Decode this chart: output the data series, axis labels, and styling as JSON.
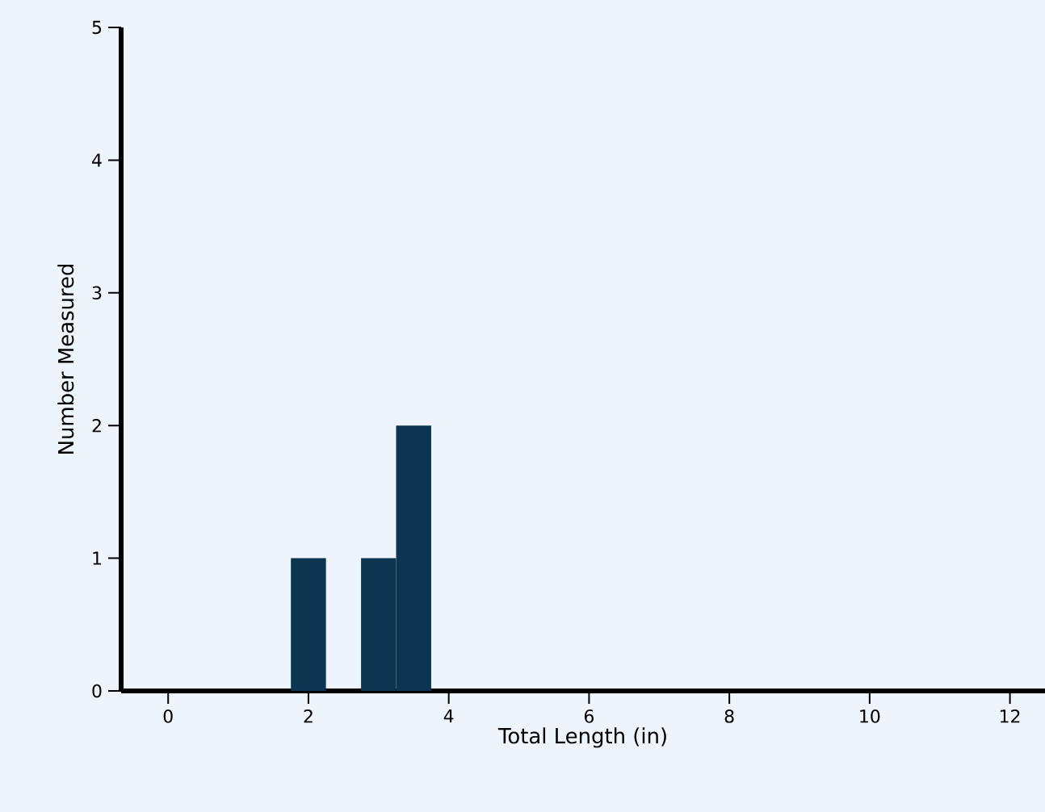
{
  "chart_data": {
    "type": "histogram",
    "xlabel": "Total Length (in)",
    "ylabel": "Number Measured",
    "bins": [
      1.75,
      2.25,
      2.75,
      3.25,
      3.75
    ],
    "values": [
      1,
      0,
      1,
      2
    ],
    "color": "#0b3550",
    "xlim": [
      -0.67,
      12.5
    ],
    "ylim": [
      0,
      5
    ],
    "xticks": [
      0,
      2,
      4,
      6,
      8,
      10,
      12
    ],
    "yticks": [
      0,
      1,
      2,
      3,
      4,
      5
    ]
  }
}
